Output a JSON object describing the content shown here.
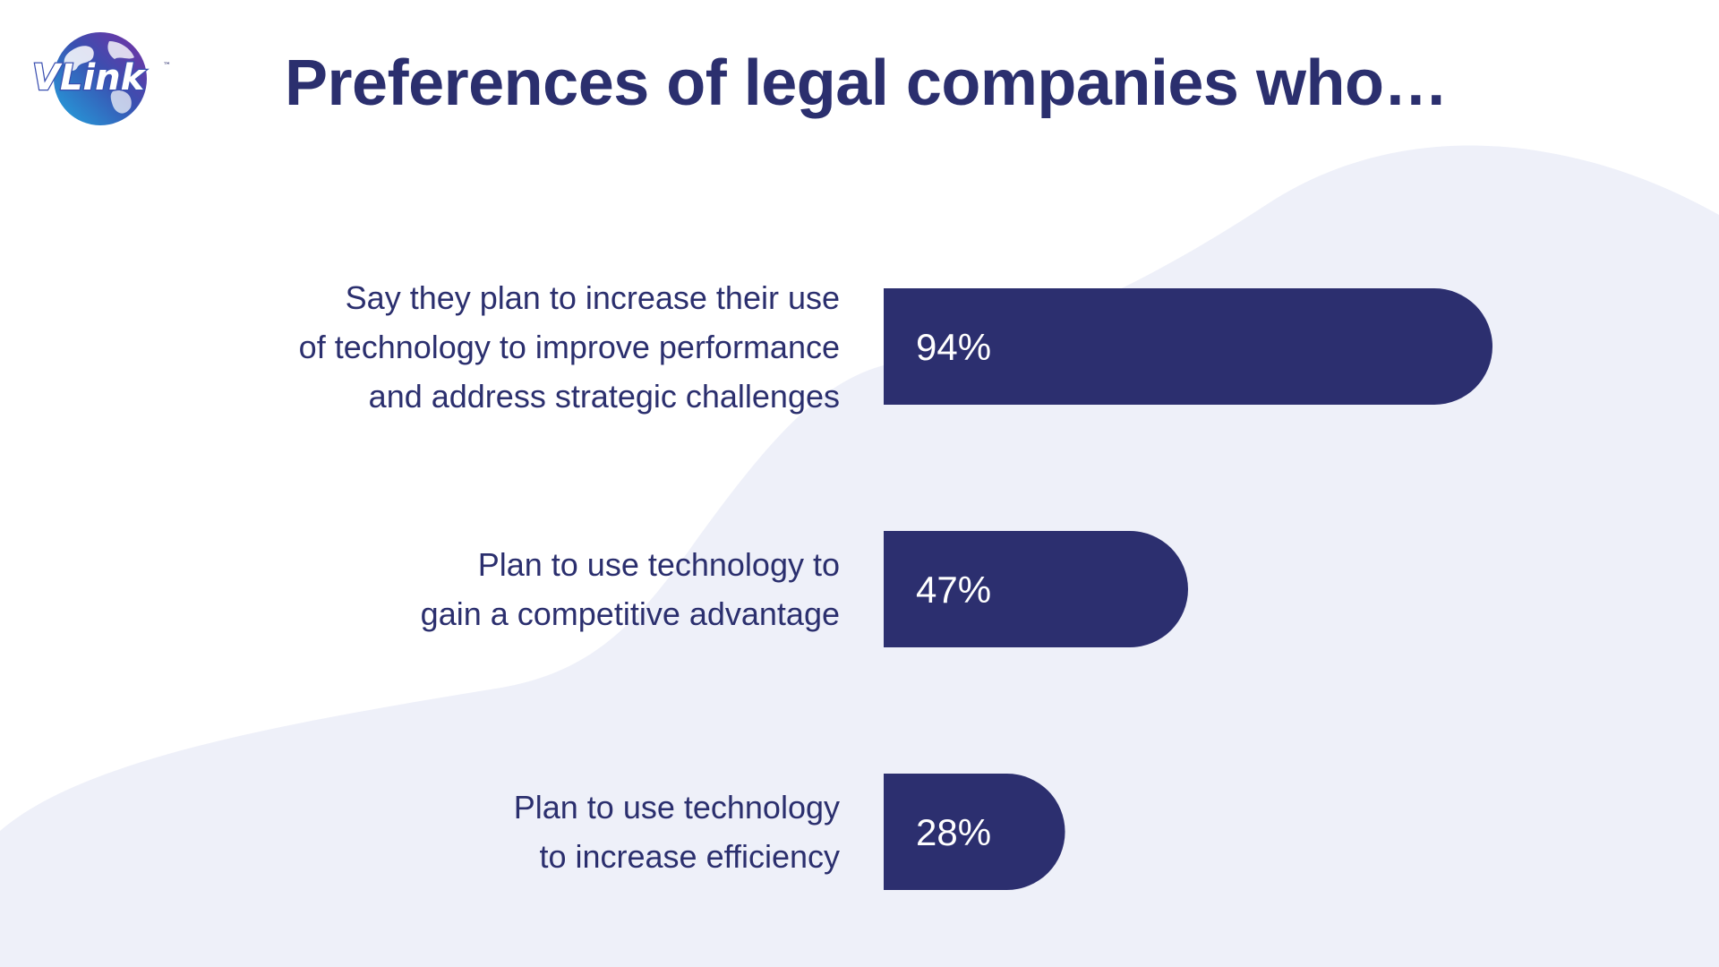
{
  "brand": {
    "logo_text": "VLink",
    "trademark": "™",
    "logo_icon": "globe-icon"
  },
  "colors": {
    "bar": "#2c2f6f",
    "title": "#2b2f6e",
    "label": "#2b2f6e",
    "wave": "#eef0f9",
    "bar_text": "#ffffff"
  },
  "chart_data": {
    "type": "bar",
    "orientation": "horizontal",
    "title": "Preferences of legal companies who…",
    "categories": [
      [
        "Say they plan to increase their use",
        "of technology to improve performance",
        "and address strategic challenges"
      ],
      [
        "Plan to use technology to",
        "gain a competitive advantage"
      ],
      [
        "Plan to use technology",
        "to increase efficiency"
      ]
    ],
    "values": [
      94,
      47,
      28
    ],
    "value_labels": [
      "94%",
      "47%",
      "28%"
    ],
    "xlim": [
      0,
      100
    ],
    "unit": "%",
    "grid": false,
    "legend": "none"
  }
}
